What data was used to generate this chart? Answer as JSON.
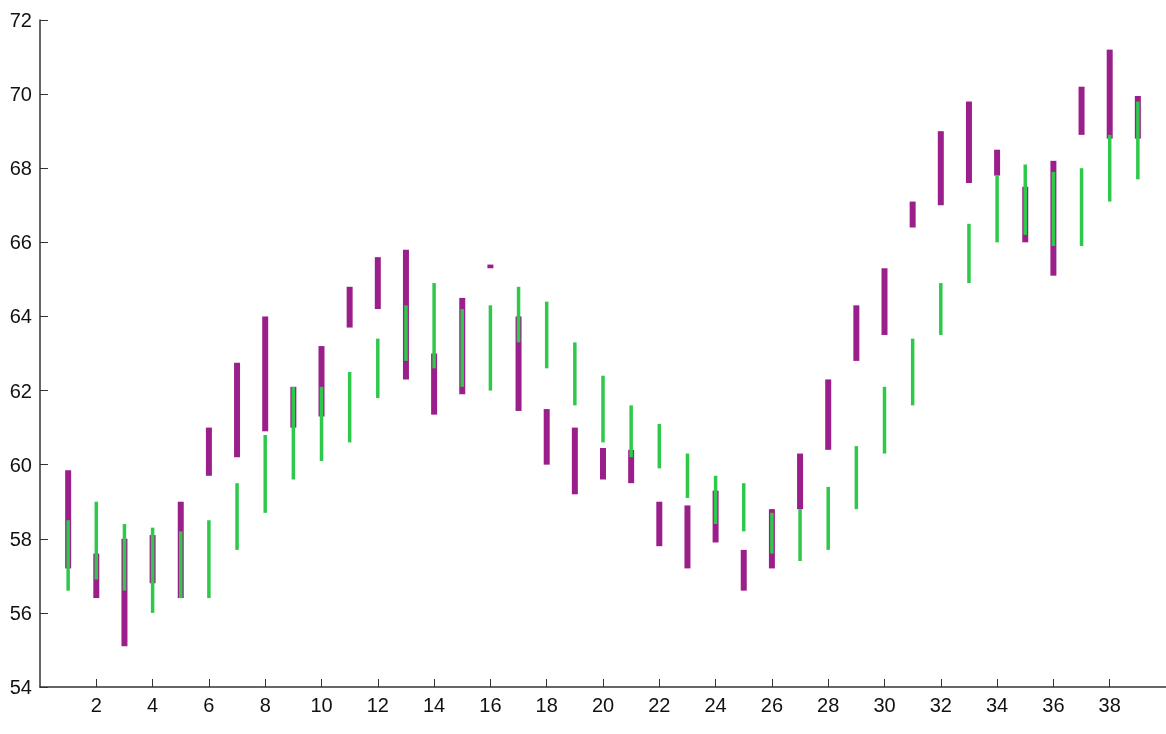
{
  "chart_data": {
    "type": "bar",
    "x": [
      1,
      2,
      3,
      4,
      5,
      6,
      7,
      8,
      9,
      10,
      11,
      12,
      13,
      14,
      15,
      16,
      17,
      18,
      19,
      20,
      21,
      22,
      23,
      24,
      25,
      26,
      27,
      28,
      29,
      30,
      31,
      32,
      33,
      34,
      35,
      36,
      37,
      38,
      39
    ],
    "series": [
      {
        "color": "#9b1f8a",
        "base": [
          57.2,
          56.4,
          55.1,
          56.8,
          56.4,
          59.7,
          60.2,
          60.9,
          61.0,
          61.3,
          63.7,
          64.2,
          62.3,
          61.35,
          61.9,
          65.3,
          61.45,
          60.0,
          59.2,
          59.6,
          59.5,
          57.8,
          57.2,
          57.9,
          56.6,
          57.2,
          58.8,
          60.4,
          62.8,
          63.5,
          66.4,
          67.0,
          67.6,
          67.8,
          66.0,
          65.1,
          68.9,
          68.8,
          68.8
        ],
        "values": [
          2.65,
          1.2,
          2.9,
          1.3,
          2.6,
          1.3,
          2.55,
          3.1,
          1.1,
          1.9,
          1.1,
          1.4,
          3.5,
          1.65,
          2.6,
          0.1,
          2.55,
          1.5,
          1.8,
          0.85,
          0.9,
          1.2,
          1.7,
          1.4,
          1.1,
          1.6,
          1.5,
          1.9,
          1.5,
          1.8,
          0.7,
          2.0,
          2.2,
          0.7,
          1.5,
          3.1,
          1.3,
          2.4,
          1.15
        ]
      },
      {
        "color": "#2ec84a",
        "base": [
          56.6,
          56.9,
          56.6,
          56.0,
          56.4,
          56.4,
          57.7,
          58.7,
          59.6,
          60.1,
          60.6,
          61.8,
          62.8,
          62.6,
          62.1,
          62.0,
          63.3,
          62.6,
          61.6,
          60.6,
          60.2,
          59.9,
          59.1,
          58.4,
          58.2,
          57.6,
          57.4,
          57.7,
          58.8,
          60.3,
          61.6,
          63.5,
          64.9,
          66.0,
          66.2,
          65.9,
          65.9,
          67.1,
          67.7
        ],
        "values": [
          1.9,
          2.1,
          1.8,
          2.3,
          1.8,
          2.1,
          1.8,
          2.1,
          2.5,
          2.0,
          1.9,
          1.6,
          1.5,
          2.3,
          2.1,
          2.3,
          1.5,
          1.8,
          1.7,
          1.8,
          1.4,
          1.2,
          1.2,
          1.3,
          1.3,
          1.1,
          1.4,
          1.7,
          1.7,
          1.8,
          1.8,
          1.4,
          1.6,
          1.8,
          1.9,
          2.0,
          2.1,
          1.8,
          2.1
        ]
      }
    ],
    "xlim": [
      0,
      40
    ],
    "xticks": [
      2,
      4,
      6,
      8,
      10,
      12,
      14,
      16,
      18,
      20,
      22,
      24,
      26,
      28,
      30,
      32,
      34,
      36,
      38
    ],
    "ylim": [
      54,
      72
    ],
    "yticks": [
      54,
      56,
      58,
      60,
      62,
      64,
      66,
      68,
      70,
      72
    ],
    "grid": false
  }
}
